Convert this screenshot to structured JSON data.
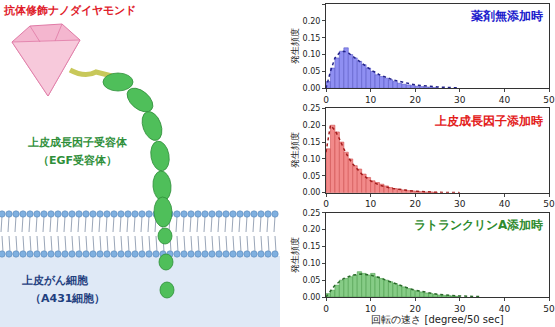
{
  "diagram": {
    "nanodiamond": "抗体修飾ナノダイヤモンド",
    "receptor": [
      "上皮成長因子受容体",
      "（EGF受容体）"
    ],
    "cell": [
      "上皮がん細胞",
      "（A431細胞）"
    ]
  },
  "chart_data": [
    {
      "type": "histogram",
      "title": "薬剤無添加時",
      "bins": [
        0,
        1,
        2,
        3,
        4,
        5,
        6,
        7,
        8,
        9,
        10,
        11,
        12,
        13,
        14,
        15,
        16,
        17,
        18,
        19,
        20,
        21,
        22,
        23,
        24,
        25
      ],
      "values": [
        0.02,
        0.06,
        0.09,
        0.11,
        0.12,
        0.1,
        0.09,
        0.08,
        0.07,
        0.06,
        0.05,
        0.04,
        0.035,
        0.03,
        0.025,
        0.02,
        0.015,
        0.012,
        0.01,
        0.008,
        0.006,
        0.005,
        0.004,
        0.003,
        0.002
      ],
      "color": "#8f8ff2",
      "fit": {
        "type": "line",
        "line_style": "dotted",
        "color": "#22228a",
        "x": [
          0,
          1,
          2,
          3,
          4,
          5,
          6,
          8,
          10,
          12,
          15,
          20,
          25,
          30
        ],
        "values": [
          0,
          0.05,
          0.09,
          0.105,
          0.11,
          0.105,
          0.095,
          0.075,
          0.055,
          0.04,
          0.025,
          0.01,
          0.004,
          0.001
        ]
      },
      "xlim": [
        0,
        50
      ],
      "xticks": [
        0,
        10,
        20,
        30,
        40,
        50
      ],
      "ylim": [
        0,
        0.25
      ],
      "yticks": [
        {
          "value": 0,
          "label": "0.00"
        },
        {
          "value": 0.05,
          "label": "0.05"
        },
        {
          "value": 0.1,
          "label": "0.10"
        },
        {
          "value": 0.15,
          "label": "0.15"
        },
        {
          "value": 0.2,
          "label": "0.20"
        },
        {
          "value": 0.25,
          "label": "0.25"
        }
      ],
      "ylabel": "発生頻度",
      "grid": false
    },
    {
      "type": "histogram",
      "title": "上皮成長因子添加時",
      "bins": [
        0,
        1,
        2,
        3,
        4,
        5,
        6,
        7,
        8,
        9,
        10,
        11,
        12,
        13,
        14,
        15,
        16,
        17,
        18,
        19,
        20,
        21,
        22,
        23,
        24,
        25
      ],
      "values": [
        0.13,
        0.2,
        0.18,
        0.15,
        0.12,
        0.1,
        0.08,
        0.07,
        0.055,
        0.045,
        0.035,
        0.03,
        0.025,
        0.02,
        0.015,
        0.012,
        0.01,
        0.008,
        0.006,
        0.005,
        0.004,
        0.003,
        0.002,
        0.002,
        0.001
      ],
      "color": "#f28a8a",
      "fit": {
        "type": "line",
        "line_style": "dotted",
        "color": "#a31d1d",
        "x": [
          0,
          1,
          2,
          3,
          4,
          5,
          6,
          8,
          10,
          12,
          15,
          20,
          25,
          30
        ],
        "values": [
          0.12,
          0.2,
          0.185,
          0.16,
          0.13,
          0.105,
          0.085,
          0.055,
          0.035,
          0.022,
          0.012,
          0.004,
          0.001,
          0
        ]
      },
      "xlim": [
        0,
        50
      ],
      "xticks": [
        0,
        10,
        20,
        30,
        40,
        50
      ],
      "ylim": [
        0,
        0.25
      ],
      "yticks": [
        {
          "value": 0,
          "label": "0.00"
        },
        {
          "value": 0.05,
          "label": "0.05"
        },
        {
          "value": 0.1,
          "label": "0.10"
        },
        {
          "value": 0.15,
          "label": "0.15"
        },
        {
          "value": 0.2,
          "label": "0.20"
        },
        {
          "value": 0.25,
          "label": "0.25"
        }
      ],
      "ylabel": "発生頻度",
      "grid": false
    },
    {
      "type": "histogram",
      "title": "ラトランクリンA添加時",
      "bins": [
        0,
        1,
        2,
        3,
        4,
        5,
        6,
        7,
        8,
        9,
        10,
        11,
        12,
        13,
        14,
        15,
        16,
        17,
        18,
        19,
        20,
        21,
        22,
        23,
        24,
        25,
        26,
        27,
        28,
        29,
        30
      ],
      "values": [
        0.01,
        0.02,
        0.035,
        0.05,
        0.055,
        0.06,
        0.065,
        0.075,
        0.07,
        0.065,
        0.07,
        0.06,
        0.055,
        0.05,
        0.045,
        0.04,
        0.035,
        0.03,
        0.025,
        0.02,
        0.018,
        0.015,
        0.012,
        0.01,
        0.008,
        0.006,
        0.005,
        0.004,
        0.003,
        0.002
      ],
      "color": "#86cc86",
      "fit": {
        "type": "line",
        "line_style": "dotted",
        "color": "#2a6a2a",
        "x": [
          0,
          2,
          4,
          6,
          8,
          10,
          12,
          14,
          16,
          18,
          20,
          25,
          30,
          35
        ],
        "values": [
          0,
          0.035,
          0.055,
          0.065,
          0.068,
          0.065,
          0.057,
          0.047,
          0.037,
          0.028,
          0.02,
          0.008,
          0.003,
          0.001
        ]
      },
      "xlim": [
        0,
        50
      ],
      "xticks": [
        0,
        10,
        20,
        30,
        40,
        50
      ],
      "ylim": [
        0,
        0.25
      ],
      "yticks": [
        {
          "value": 0,
          "label": "0.00"
        },
        {
          "value": 0.05,
          "label": "0.05"
        },
        {
          "value": 0.1,
          "label": "0.10"
        },
        {
          "value": 0.15,
          "label": "0.15"
        },
        {
          "value": 0.2,
          "label": "0.20"
        },
        {
          "value": 0.25,
          "label": "0.25"
        }
      ],
      "ylabel": "発生頻度",
      "xlabel": "回転の速さ [degree/50 sec]",
      "grid": false
    }
  ]
}
